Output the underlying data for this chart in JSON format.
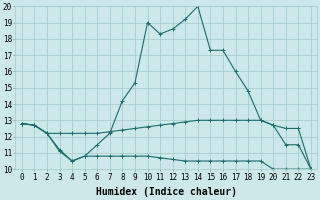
{
  "xlabel": "Humidex (Indice chaleur)",
  "x": [
    0,
    1,
    2,
    3,
    4,
    5,
    6,
    7,
    8,
    9,
    10,
    11,
    12,
    13,
    14,
    15,
    16,
    17,
    18,
    19,
    20,
    21,
    22,
    23
  ],
  "line1": [
    12.8,
    12.7,
    12.2,
    11.1,
    10.5,
    10.8,
    11.5,
    12.2,
    14.2,
    15.3,
    19.0,
    18.3,
    18.6,
    19.2,
    20.0,
    17.3,
    17.3,
    16.0,
    14.8,
    13.0,
    12.7,
    11.5,
    11.5,
    10.0
  ],
  "line2": [
    12.8,
    12.7,
    12.2,
    12.2,
    12.2,
    12.2,
    12.2,
    12.3,
    12.4,
    12.5,
    12.6,
    12.7,
    12.8,
    12.9,
    13.0,
    13.0,
    13.0,
    13.0,
    13.0,
    13.0,
    12.7,
    12.5,
    12.5,
    10.0
  ],
  "line3": [
    12.8,
    12.7,
    12.2,
    11.2,
    10.5,
    10.8,
    10.8,
    10.8,
    10.8,
    10.8,
    10.8,
    10.7,
    10.6,
    10.5,
    10.5,
    10.5,
    10.5,
    10.5,
    10.5,
    10.5,
    10.0,
    10.0,
    10.0,
    10.0
  ],
  "line_color": "#1a6b6b",
  "bg_color": "#cce8e8",
  "grid_color": "#aacece",
  "ylim": [
    10,
    20
  ],
  "xlim": [
    -0.5,
    23.5
  ],
  "yticks": [
    10,
    11,
    12,
    13,
    14,
    15,
    16,
    17,
    18,
    19,
    20
  ],
  "xticks": [
    0,
    1,
    2,
    3,
    4,
    5,
    6,
    7,
    8,
    9,
    10,
    11,
    12,
    13,
    14,
    15,
    16,
    17,
    18,
    19,
    20,
    21,
    22,
    23
  ],
  "xtick_labels": [
    "0",
    "1",
    "2",
    "3",
    "4",
    "5",
    "6",
    "7",
    "8",
    "9",
    "10",
    "11",
    "12",
    "13",
    "14",
    "15",
    "16",
    "17",
    "18",
    "19",
    "20",
    "21",
    "22",
    "23"
  ],
  "tick_fontsize": 5.5,
  "xlabel_fontsize": 7.0
}
